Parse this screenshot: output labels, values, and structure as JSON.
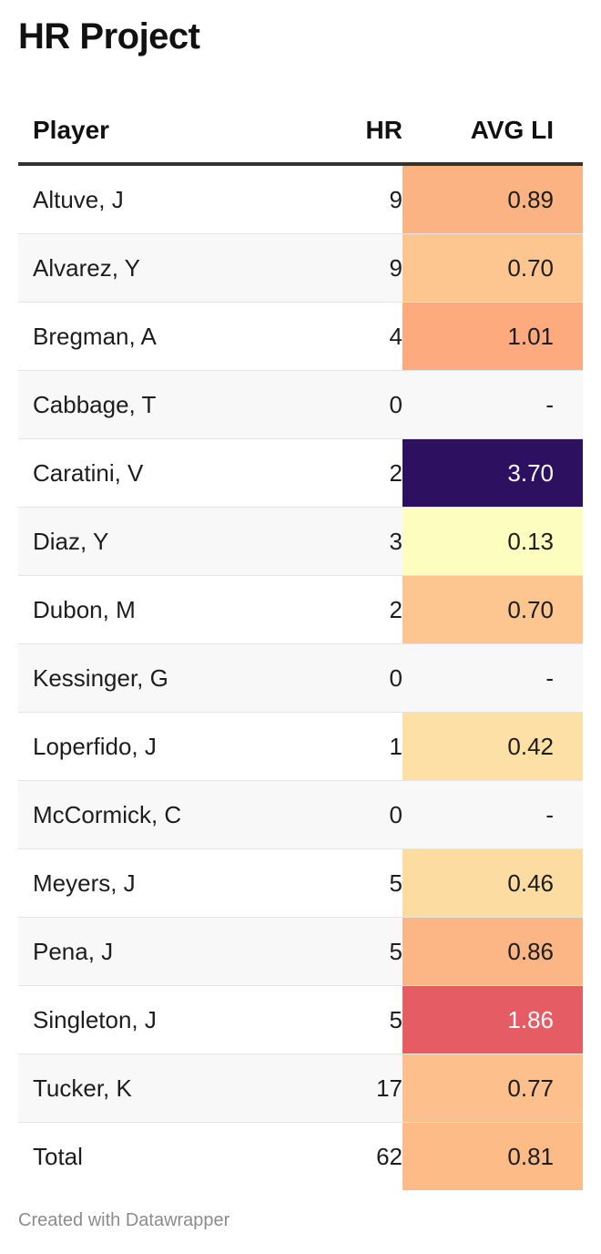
{
  "title": "HR Project",
  "footer": "Created with Datawrapper",
  "chart_data": {
    "type": "table",
    "title": "HR Project",
    "columns": [
      "Player",
      "HR",
      "AVG LI"
    ],
    "rows": [
      {
        "player": "Altuve, J",
        "hr": "9",
        "avg_li": "0.89",
        "color": "#fcb384",
        "text_color": "#1d1d1d"
      },
      {
        "player": "Alvarez, Y",
        "hr": "9",
        "avg_li": "0.70",
        "color": "#fdc58f",
        "text_color": "#1d1d1d"
      },
      {
        "player": "Bregman, A",
        "hr": "4",
        "avg_li": "1.01",
        "color": "#fcaa7e",
        "text_color": "#1d1d1d"
      },
      {
        "player": "Cabbage, T",
        "hr": "0",
        "avg_li": "-",
        "color": "",
        "text_color": "#1d1d1d"
      },
      {
        "player": "Caratini, V",
        "hr": "2",
        "avg_li": "3.70",
        "color": "#2d1160",
        "text_color": "#ffffff"
      },
      {
        "player": "Diaz, Y",
        "hr": "3",
        "avg_li": "0.13",
        "color": "#fcfdbf",
        "text_color": "#1d1d1d"
      },
      {
        "player": "Dubon, M",
        "hr": "2",
        "avg_li": "0.70",
        "color": "#fdc58f",
        "text_color": "#1d1d1d"
      },
      {
        "player": "Kessinger, G",
        "hr": "0",
        "avg_li": "-",
        "color": "",
        "text_color": "#1d1d1d"
      },
      {
        "player": "Loperfido, J",
        "hr": "1",
        "avg_li": "0.42",
        "color": "#fde0a5",
        "text_color": "#1d1d1d"
      },
      {
        "player": "McCormick, C",
        "hr": "0",
        "avg_li": "-",
        "color": "",
        "text_color": "#1d1d1d"
      },
      {
        "player": "Meyers, J",
        "hr": "5",
        "avg_li": "0.46",
        "color": "#fddca2",
        "text_color": "#1d1d1d"
      },
      {
        "player": "Pena, J",
        "hr": "5",
        "avg_li": "0.86",
        "color": "#fcb585",
        "text_color": "#1d1d1d"
      },
      {
        "player": "Singleton, J",
        "hr": "5",
        "avg_li": "1.86",
        "color": "#e65c65",
        "text_color": "#ffffff"
      },
      {
        "player": "Tucker, K",
        "hr": "17",
        "avg_li": "0.77",
        "color": "#fdbf8b",
        "text_color": "#1d1d1d"
      },
      {
        "player": "Total",
        "hr": "62",
        "avg_li": "0.81",
        "color": "#fdbb88",
        "text_color": "#1d1d1d"
      }
    ]
  }
}
